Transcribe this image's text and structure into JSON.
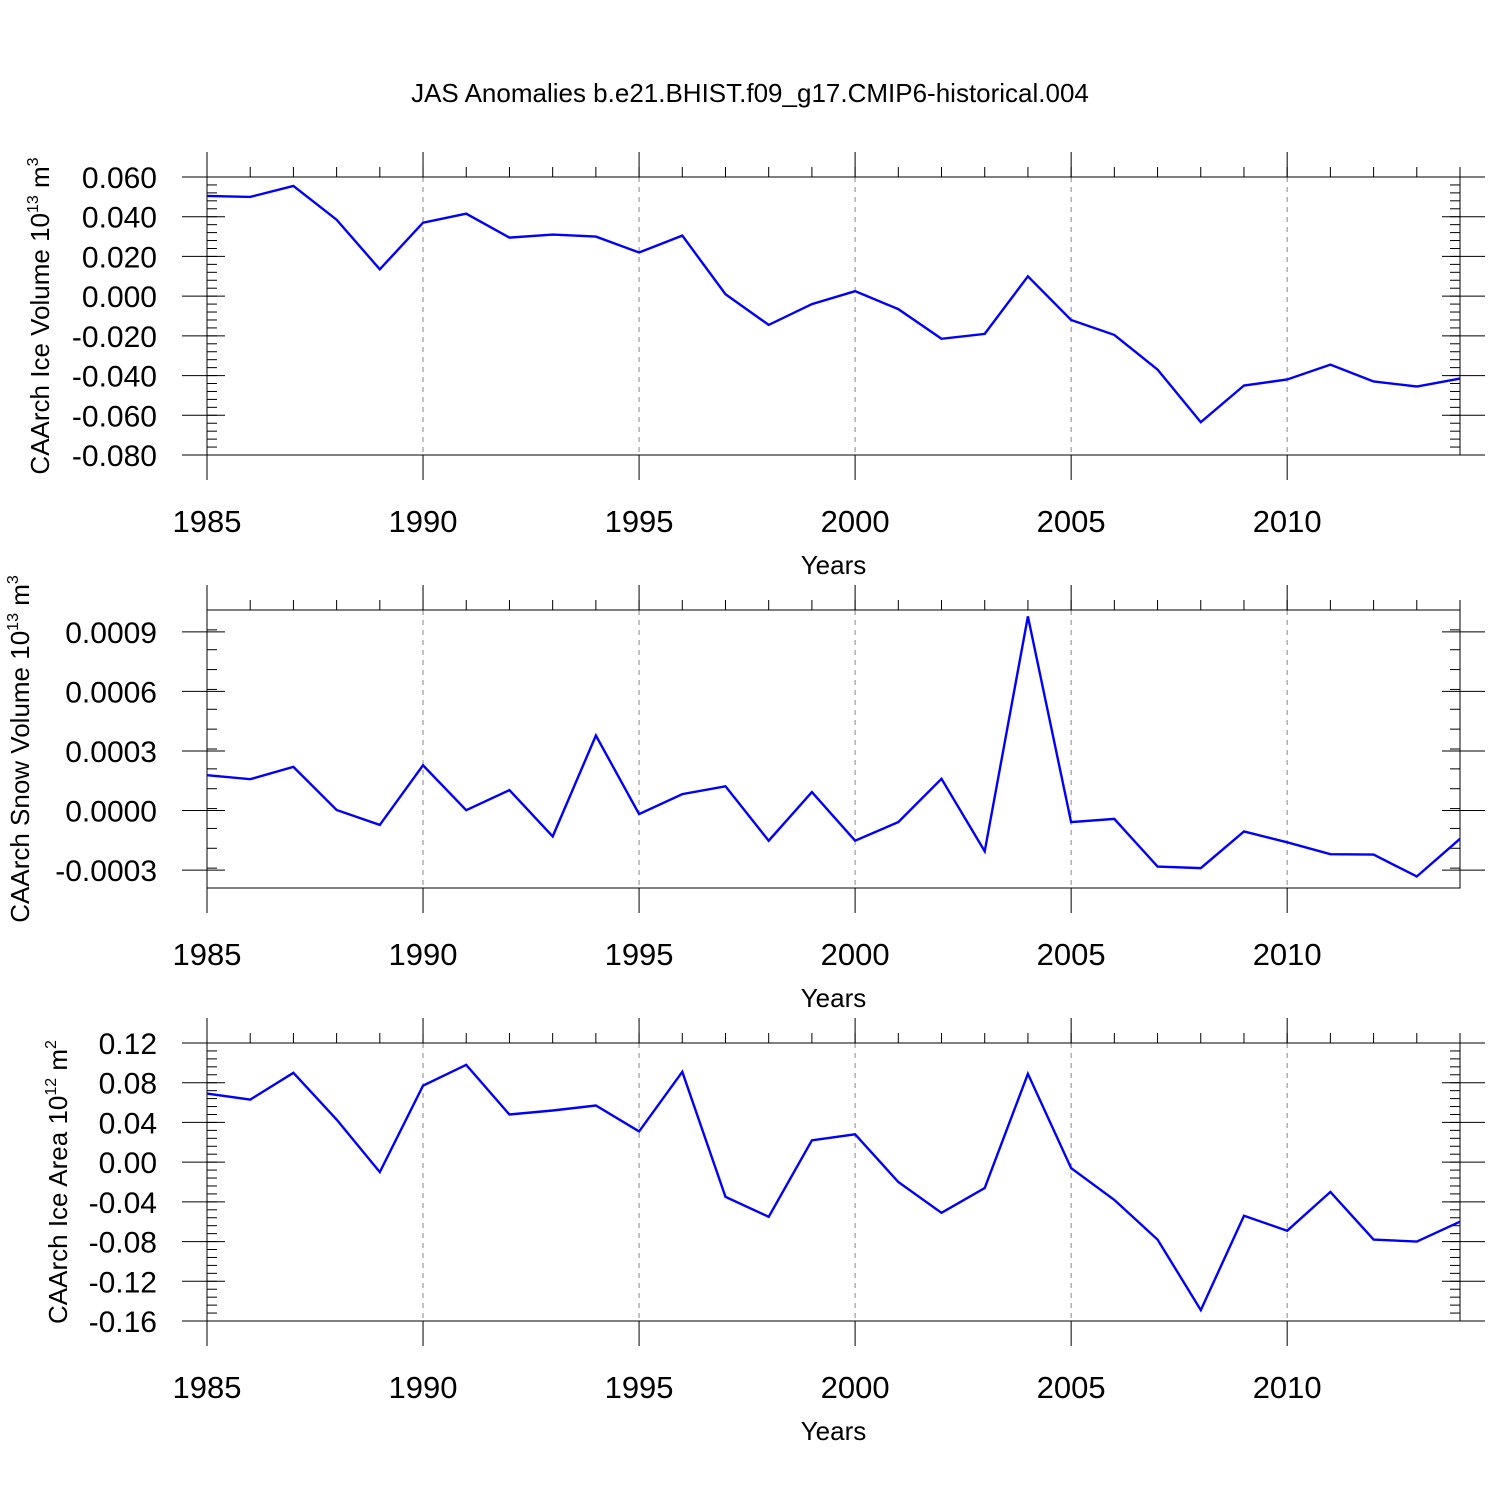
{
  "title": "JAS Anomalies b.e21.BHIST.f09_g17.CMIP6-historical.004",
  "chart_data": [
    {
      "type": "line",
      "title": "JAS Anomalies b.e21.BHIST.f09_g17.CMIP6-historical.004",
      "xlabel": "Years",
      "ylabel_main": "CAArch Ice Volume 10",
      "ylabel_exp": "13",
      "ylabel_unit": " m",
      "ylabel_unit_exp": "3",
      "xlim": [
        1985,
        2014
      ],
      "ylim": [
        -0.08,
        0.06
      ],
      "x_ticks": [
        1985,
        1990,
        1995,
        2000,
        2005,
        2010
      ],
      "y_ticks": [
        -0.08,
        -0.06,
        -0.04,
        -0.02,
        0.0,
        0.02,
        0.04,
        0.06
      ],
      "y_tick_labels": [
        "-0.080",
        "-0.060",
        "-0.040",
        "-0.020",
        "0.000",
        "0.020",
        "0.040",
        "0.060"
      ],
      "y_minor_step": 0.004,
      "line_color": "#0000ff",
      "x": [
        1985,
        1986,
        1987,
        1988,
        1989,
        1990,
        1991,
        1992,
        1993,
        1994,
        1995,
        1996,
        1997,
        1998,
        1999,
        2000,
        2001,
        2002,
        2003,
        2004,
        2005,
        2006,
        2007,
        2008,
        2009,
        2010,
        2011,
        2012,
        2013,
        2014
      ],
      "values": [
        0.0505,
        0.05,
        0.0555,
        0.0385,
        0.0135,
        0.037,
        0.0415,
        0.0295,
        0.031,
        0.03,
        0.022,
        0.0305,
        0.001,
        -0.0145,
        -0.004,
        0.0025,
        -0.0065,
        -0.0215,
        -0.019,
        0.01,
        -0.012,
        -0.0195,
        -0.037,
        -0.0635,
        -0.045,
        -0.042,
        -0.0345,
        -0.043,
        -0.0455,
        -0.0415
      ]
    },
    {
      "type": "line",
      "xlabel": "Years",
      "ylabel_main": "CAArch Snow Volume 10",
      "ylabel_exp": "13",
      "ylabel_unit": " m",
      "ylabel_unit_exp": "3",
      "xlim": [
        1985,
        2014
      ],
      "ylim": [
        -0.00039,
        0.00101
      ],
      "x_ticks": [
        1985,
        1990,
        1995,
        2000,
        2005,
        2010
      ],
      "y_ticks": [
        -0.0003,
        0.0,
        0.0003,
        0.0006,
        0.0009
      ],
      "y_tick_labels": [
        "-0.0003",
        "0.0000",
        "0.0003",
        "0.0006",
        "0.0009"
      ],
      "y_minor_step": 0.0001,
      "line_color": "#0000ff",
      "x": [
        1985,
        1986,
        1987,
        1988,
        1989,
        1990,
        1991,
        1992,
        1993,
        1994,
        1995,
        1996,
        1997,
        1998,
        1999,
        2000,
        2001,
        2002,
        2003,
        2004,
        2005,
        2006,
        2007,
        2008,
        2009,
        2010,
        2011,
        2012,
        2013,
        2014
      ],
      "values": [
        0.000178,
        0.000158,
        0.00022,
        3e-06,
        -7.2e-05,
        0.000228,
        2e-06,
        0.000103,
        -0.00013,
        0.000378,
        -1.8e-05,
        8.3e-05,
        0.000122,
        -0.000152,
        9.3e-05,
        -0.000152,
        -5.8e-05,
        0.00016,
        -0.000205,
        0.000978,
        -5.8e-05,
        -4.2e-05,
        -0.000282,
        -0.00029,
        -0.000105,
        -0.00016,
        -0.00022,
        -0.000222,
        -0.000332,
        -0.000142
      ]
    },
    {
      "type": "line",
      "xlabel": "Years",
      "ylabel_main": "CAArch Ice Area 10",
      "ylabel_exp": "12",
      "ylabel_unit": " m",
      "ylabel_unit_exp": "2",
      "xlim": [
        1985,
        2014
      ],
      "ylim": [
        -0.16,
        0.12
      ],
      "x_ticks": [
        1985,
        1990,
        1995,
        2000,
        2005,
        2010
      ],
      "y_ticks": [
        -0.16,
        -0.12,
        -0.08,
        -0.04,
        0.0,
        0.04,
        0.08,
        0.12
      ],
      "y_tick_labels": [
        "-0.16",
        "-0.12",
        "-0.08",
        "-0.04",
        "0.00",
        "0.04",
        "0.08",
        "0.12"
      ],
      "y_minor_step": 0.008,
      "line_color": "#0000ff",
      "x": [
        1985,
        1986,
        1987,
        1988,
        1989,
        1990,
        1991,
        1992,
        1993,
        1994,
        1995,
        1996,
        1997,
        1998,
        1999,
        2000,
        2001,
        2002,
        2003,
        2004,
        2005,
        2006,
        2007,
        2008,
        2009,
        2010,
        2011,
        2012,
        2013,
        2014
      ],
      "values": [
        0.069,
        0.063,
        0.09,
        0.043,
        -0.01,
        0.077,
        0.098,
        0.048,
        0.052,
        0.057,
        0.031,
        0.091,
        -0.035,
        -0.055,
        0.022,
        0.028,
        -0.02,
        -0.051,
        -0.026,
        0.089,
        -0.006,
        -0.038,
        -0.078,
        -0.149,
        -0.054,
        -0.069,
        -0.03,
        -0.078,
        -0.08,
        -0.06
      ]
    }
  ]
}
